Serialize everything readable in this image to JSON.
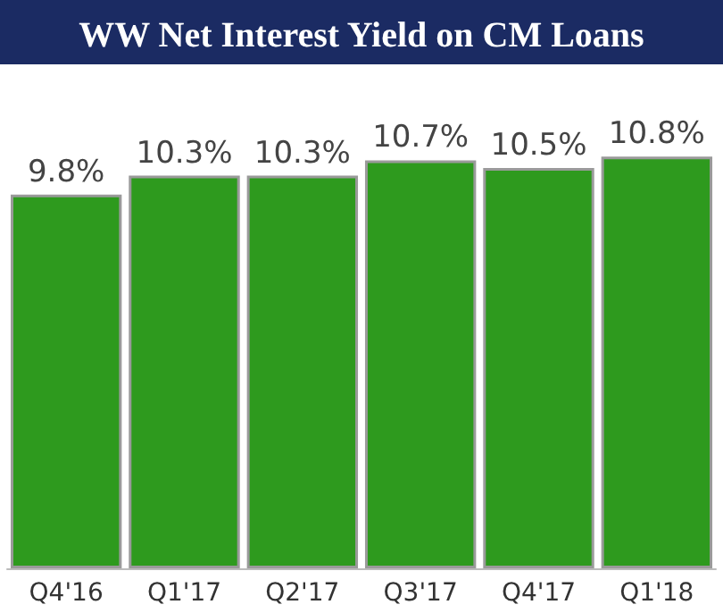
{
  "chart_data": {
    "type": "bar",
    "title": "WW Net Interest Yield on CM Loans",
    "categories": [
      "Q4'16",
      "Q1'17",
      "Q2'17",
      "Q3'17",
      "Q4'17",
      "Q1'18"
    ],
    "values": [
      9.8,
      10.3,
      10.3,
      10.7,
      10.5,
      10.8
    ],
    "value_labels": [
      "9.8%",
      "10.3%",
      "10.3%",
      "10.7%",
      "10.5%",
      "10.8%"
    ],
    "color": "#2e9a1e",
    "tick_labels": "x"
  }
}
